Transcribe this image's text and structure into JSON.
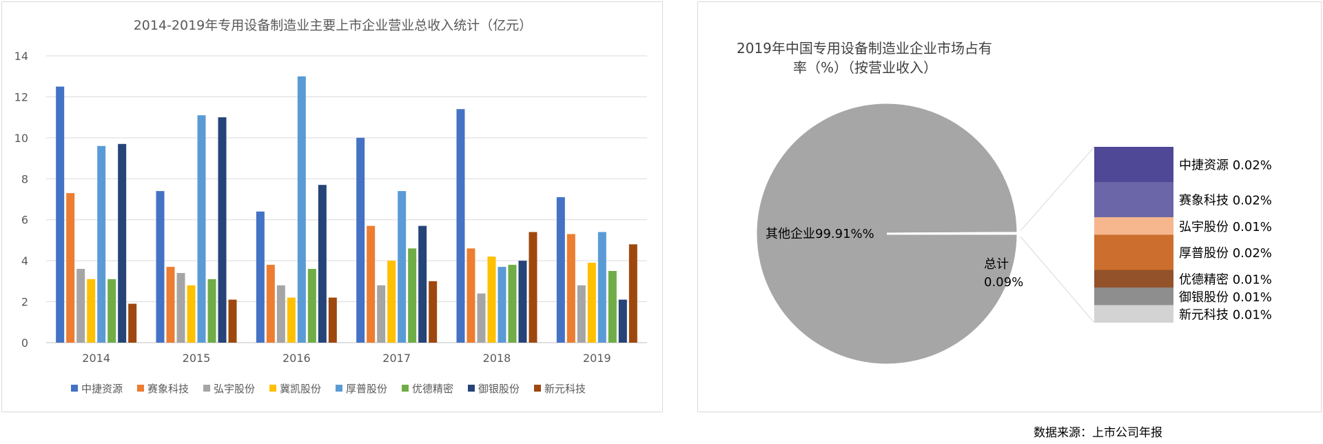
{
  "source_note": "数据来源：上市公司年报",
  "chart_data": [
    {
      "type": "bar",
      "title": "2014-2019年专用设备制造业主要上市企业营业总收入统计（亿元）",
      "categories": [
        "2014",
        "2015",
        "2016",
        "2017",
        "2018",
        "2019"
      ],
      "ylim": [
        0,
        14
      ],
      "yticks": [
        0,
        2,
        4,
        6,
        8,
        10,
        12,
        14
      ],
      "grid": true,
      "legend_position": "bottom",
      "series": [
        {
          "name": "中捷资源",
          "color": "#4472C4",
          "values": [
            12.5,
            7.4,
            6.4,
            10.0,
            11.4,
            7.1
          ]
        },
        {
          "name": "赛象科技",
          "color": "#ED7D31",
          "values": [
            7.3,
            3.7,
            3.8,
            5.7,
            4.6,
            5.3
          ]
        },
        {
          "name": "弘宇股份",
          "color": "#A5A5A5",
          "values": [
            3.6,
            3.4,
            2.8,
            2.8,
            2.4,
            2.8
          ]
        },
        {
          "name": "冀凯股份",
          "color": "#FFC000",
          "values": [
            3.1,
            2.8,
            2.2,
            4.0,
            4.2,
            3.9
          ]
        },
        {
          "name": "厚普股份",
          "color": "#5B9BD5",
          "values": [
            9.6,
            11.1,
            13.0,
            7.4,
            3.7,
            5.4
          ]
        },
        {
          "name": "优德精密",
          "color": "#70AD47",
          "values": [
            3.1,
            3.1,
            3.6,
            4.6,
            3.8,
            3.5
          ]
        },
        {
          "name": "御银股份",
          "color": "#264478",
          "values": [
            9.7,
            11.0,
            7.7,
            5.7,
            4.0,
            2.1
          ]
        },
        {
          "name": "新元科技",
          "color": "#9E480E",
          "values": [
            1.9,
            2.1,
            2.2,
            3.0,
            5.4,
            4.8
          ]
        }
      ]
    },
    {
      "type": "pie",
      "title_line1": "2019年中国专用设备制造业企业市场占有",
      "title_line2": "率（%）（按营业收入）",
      "slices": [
        {
          "label": "其他企业99.91%%",
          "value": 99.91,
          "color": "#A6A6A6"
        },
        {
          "label": "总计",
          "value": 0.09,
          "color": "#FFFFFF"
        }
      ],
      "total_label_line1": "总计",
      "total_label_line2": "0.09%",
      "breakdown": [
        {
          "label": "中捷资源 0.02%",
          "value": 0.02,
          "color": "#4E4896"
        },
        {
          "label": "赛象科技 0.02%",
          "value": 0.02,
          "color": "#6B66A8"
        },
        {
          "label": "弘宇股份 0.01%",
          "value": 0.01,
          "color": "#F6B78E"
        },
        {
          "label": "厚普股份 0.02%",
          "value": 0.02,
          "color": "#CC6E2E"
        },
        {
          "label": "优德精密 0.01%",
          "value": 0.01,
          "color": "#93522A"
        },
        {
          "label": "御银股份 0.01%",
          "value": 0.01,
          "color": "#8E8E8E"
        },
        {
          "label": "新元科技 0.01%",
          "value": 0.01,
          "color": "#D3D3D3"
        }
      ]
    }
  ]
}
